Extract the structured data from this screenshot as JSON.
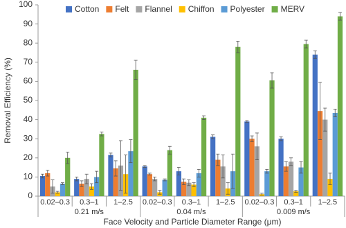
{
  "chart_data": {
    "type": "bar",
    "x_label": "Face Velocity and Particle Diameter Range (μm)",
    "y_label": "Removal Efficiency (%)",
    "categories": [
      "0.02–0.3",
      "0.3–1",
      "1–2.5",
      "0.02–0.3",
      "0.3–1",
      "1–2.5",
      "0.02–0.3",
      "0.3–1",
      "1–2.5"
    ],
    "category_groups": [
      "0.21 m/s",
      "0.04 m/s",
      "0.009 m/s"
    ],
    "ylim": [
      0,
      100
    ],
    "yticks": [
      0,
      10,
      20,
      30,
      40,
      50,
      60,
      70,
      80,
      90,
      100
    ],
    "legend": "top",
    "series": [
      {
        "name": "Cotton",
        "color": "#4472c4",
        "values": [
          10.5,
          9,
          21.5,
          15.5,
          13,
          31,
          39,
          30,
          74
        ],
        "errors": [
          1,
          1,
          1,
          0.5,
          2,
          1,
          0.5,
          1,
          2
        ]
      },
      {
        "name": "Felt",
        "color": "#ed7d31",
        "values": [
          12,
          6.5,
          14.5,
          11.5,
          7.5,
          19,
          30,
          15.5,
          44.5
        ],
        "errors": [
          1.5,
          1.5,
          4,
          0.5,
          1.5,
          3,
          1.5,
          2.5,
          15
        ]
      },
      {
        "name": "Flannel",
        "color": "#a5a5a5",
        "values": [
          5,
          9,
          16,
          9,
          7,
          15.5,
          26,
          18,
          40
        ],
        "errors": [
          3.5,
          2.5,
          13,
          1,
          1.5,
          6,
          7,
          2,
          6
        ]
      },
      {
        "name": "Chiffon",
        "color": "#ffc000",
        "values": [
          2,
          5,
          11.5,
          2,
          6,
          4,
          1,
          2.5,
          9
        ],
        "errors": [
          0.5,
          1.5,
          10,
          1,
          1,
          3,
          0.5,
          0.5,
          3
        ]
      },
      {
        "name": "Polyester",
        "color": "#5b9bd5",
        "values": [
          6.5,
          10,
          23.5,
          8.5,
          12,
          13,
          13,
          15,
          43.5
        ],
        "errors": [
          0.5,
          3,
          6,
          0.5,
          2,
          9,
          1,
          3,
          2
        ]
      },
      {
        "name": "MERV",
        "color": "#70ad47",
        "values": [
          20,
          32.5,
          66,
          24,
          41,
          78,
          60.5,
          79.5,
          94
        ],
        "errors": [
          3,
          1,
          5,
          2,
          1,
          3,
          4,
          2,
          2
        ]
      }
    ]
  }
}
